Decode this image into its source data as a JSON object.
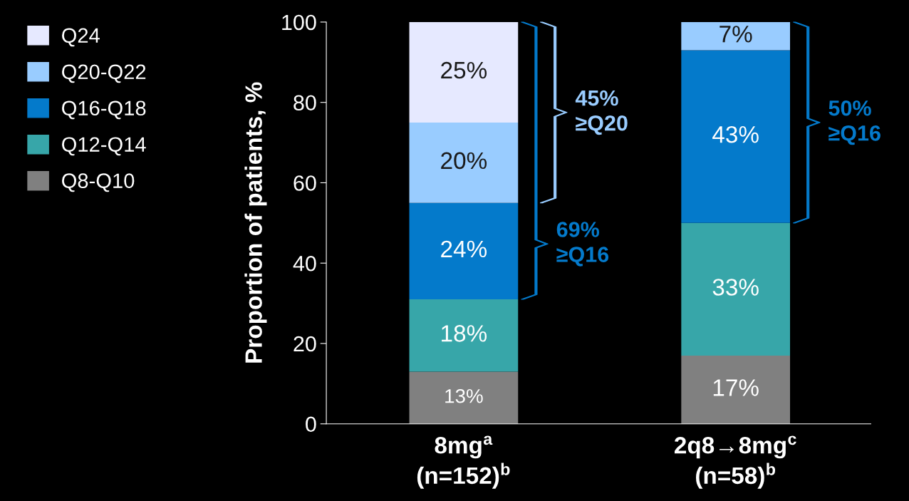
{
  "chart_data": {
    "type": "bar",
    "stacked": true,
    "ylabel": "Proportion of patients, %",
    "categories": [
      "8mg$^{a}$\n(n=152)$^{b}$",
      "2q8→8mg$^{c}$\n(n=58)$^{b}$"
    ],
    "series": [
      {
        "name": "Q8-Q10",
        "color": "#808080",
        "values": [
          13,
          17
        ],
        "value_labels": [
          "13%",
          "17%"
        ]
      },
      {
        "name": "Q12-Q14",
        "color": "#37a6a9",
        "values": [
          18,
          33
        ],
        "value_labels": [
          "18%",
          "33%"
        ]
      },
      {
        "name": "Q16-Q18",
        "color": "#047acb",
        "values": [
          24,
          43
        ],
        "value_labels": [
          "24%",
          "43%"
        ]
      },
      {
        "name": "Q20-Q22",
        "color": "#99ccff",
        "values": [
          20,
          7
        ],
        "value_labels": [
          "20%",
          "7%"
        ]
      },
      {
        "name": "Q24",
        "color": "#e6e9ff",
        "values": [
          25,
          null
        ],
        "value_labels": [
          "25%",
          null
        ]
      }
    ],
    "ylim": [
      0,
      100
    ],
    "yticks": [
      0,
      20,
      40,
      60,
      80,
      100
    ],
    "grid": false,
    "legend": "left",
    "annotations": [
      "45%\n≥Q20",
      "69%\n≥Q16",
      "50%\n≥Q16"
    ]
  }
}
